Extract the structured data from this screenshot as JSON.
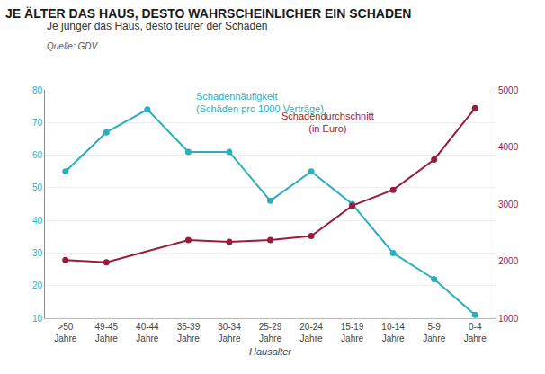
{
  "chart_data": {
    "type": "line",
    "title": "JE ÄLTER DAS HAUS, DESTO WAHRSCHEINLICHER EIN SCHADEN",
    "subtitle": "Je jünger das Haus, desto teurer der Schaden",
    "source": "Quelle: GDV",
    "xlabel": "Hausalter",
    "categories": [
      ">50\nJahre",
      "49-45\nJahre",
      "40-44\nJahre",
      "35-39\nJahre",
      "30-34\nJahre",
      "25-29\nJahre",
      "20-24\nJahre",
      "15-19\nJahre",
      "10-14\nJahre",
      "5-9\nJahre",
      "0-4\nJahre"
    ],
    "series": [
      {
        "name": "Schadenhäufigkeit\n(Schäden pro 1000 Verträge)",
        "color": "#2ab0bc",
        "marker": "circle",
        "values": [
          55,
          67,
          74,
          61,
          61,
          46,
          55,
          45,
          30,
          22,
          11
        ]
      },
      {
        "name": "Schadendurchschnitt\n(in Euro)",
        "color": "#9b1b3b",
        "marker": "circle",
        "axis": "y2",
        "values": [
          2020,
          1980,
          null,
          2370,
          2340,
          2370,
          2440,
          2970,
          3250,
          3780,
          4680
        ]
      }
    ],
    "ylim": [
      10,
      80
    ],
    "yticks": [
      10,
      20,
      30,
      40,
      50,
      60,
      70,
      80
    ],
    "y2lim": [
      1000,
      5000
    ],
    "y2ticks": [
      1000,
      2000,
      3000,
      4000,
      5000
    ],
    "grid": true
  }
}
